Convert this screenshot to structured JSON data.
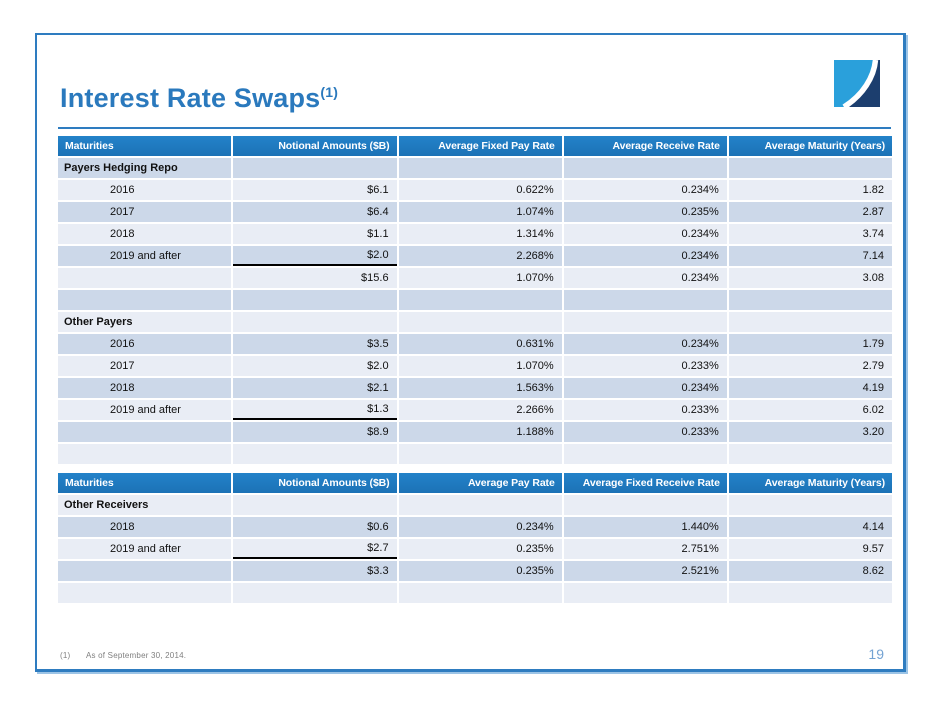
{
  "slide": {
    "title": "Interest Rate Swaps",
    "title_superscript": "(1)",
    "footnote_marker": "(1)",
    "footnote_text": "As of September 30, 2014.",
    "page_number": "19"
  },
  "colors": {
    "header_blue": "#1e78bd",
    "row_light": "#e9edf5",
    "row_dark": "#ccd8e9",
    "title_blue": "#2a79bd",
    "frame_border_blue": "#2e7cc0",
    "frame_outer_light_blue": "#9cc4e6",
    "page_number_blue": "#74a3d3",
    "footnote_gray": "#7f7f7f",
    "logo_light_blue": "#2aa0db",
    "logo_navy": "#1c3e6e"
  },
  "table1": {
    "columns": [
      "Maturities",
      "Notional Amounts ($B)",
      "Average Fixed Pay Rate",
      "Average Receive Rate",
      "Average Maturity (Years)"
    ],
    "rows": [
      {
        "type": "section",
        "label": "Payers Hedging Repo"
      },
      {
        "type": "data",
        "label": "2016",
        "cells": [
          "$6.1",
          "0.622%",
          "0.234%",
          "1.82"
        ]
      },
      {
        "type": "data",
        "label": "2017",
        "cells": [
          "$6.4",
          "1.074%",
          "0.235%",
          "2.87"
        ]
      },
      {
        "type": "data",
        "label": "2018",
        "cells": [
          "$1.1",
          "1.314%",
          "0.234%",
          "3.74"
        ]
      },
      {
        "type": "data",
        "label": "2019 and after",
        "cells": [
          "$2.0",
          "2.268%",
          "0.234%",
          "7.14"
        ],
        "underline_notional": true
      },
      {
        "type": "total",
        "cells": [
          "$15.6",
          "1.070%",
          "0.234%",
          "3.08"
        ]
      },
      {
        "type": "blank"
      },
      {
        "type": "section",
        "label": "Other Payers"
      },
      {
        "type": "data",
        "label": "2016",
        "cells": [
          "$3.5",
          "0.631%",
          "0.234%",
          "1.79"
        ]
      },
      {
        "type": "data",
        "label": "2017",
        "cells": [
          "$2.0",
          "1.070%",
          "0.233%",
          "2.79"
        ]
      },
      {
        "type": "data",
        "label": "2018",
        "cells": [
          "$2.1",
          "1.563%",
          "0.234%",
          "4.19"
        ]
      },
      {
        "type": "data",
        "label": "2019 and after",
        "cells": [
          "$1.3",
          "2.266%",
          "0.233%",
          "6.02"
        ],
        "underline_notional": true
      },
      {
        "type": "total",
        "cells": [
          "$8.9",
          "1.188%",
          "0.233%",
          "3.20"
        ]
      },
      {
        "type": "blank"
      }
    ]
  },
  "table2": {
    "columns": [
      "Maturities",
      "Notional Amounts ($B)",
      "Average Pay Rate",
      "Average Fixed Receive Rate",
      "Average Maturity (Years)"
    ],
    "rows": [
      {
        "type": "section",
        "label": "Other Receivers"
      },
      {
        "type": "data",
        "label": "2018",
        "cells": [
          "$0.6",
          "0.234%",
          "1.440%",
          "4.14"
        ]
      },
      {
        "type": "data",
        "label": "2019 and after",
        "cells": [
          "$2.7",
          "0.235%",
          "2.751%",
          "9.57"
        ],
        "underline_notional": true
      },
      {
        "type": "total",
        "cells": [
          "$3.3",
          "0.235%",
          "2.521%",
          "8.62"
        ]
      },
      {
        "type": "blank"
      }
    ]
  }
}
